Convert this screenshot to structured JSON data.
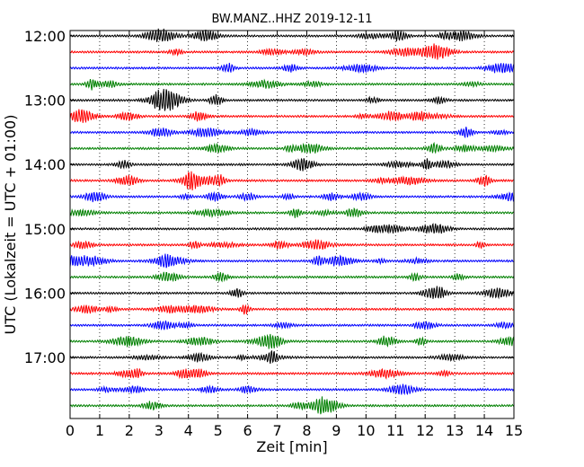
{
  "chart_data": {
    "type": "line",
    "title": "BW.MANZ..HHZ 2019-12-11",
    "xlabel": "Zeit  [min]",
    "ylabel": "UTC (Lokalzeit = UTC + 01:00)",
    "xlim": [
      0,
      15
    ],
    "x_ticks": [
      "0",
      "1",
      "2",
      "3",
      "4",
      "5",
      "6",
      "7",
      "8",
      "9",
      "10",
      "11",
      "12",
      "13",
      "14",
      "15"
    ],
    "y_tick_labels": [
      "12:00",
      "13:00",
      "14:00",
      "15:00",
      "16:00",
      "17:00"
    ],
    "trace_start": "12:00",
    "trace_interval_min": 15,
    "trace_count": 24,
    "trace_colors": [
      "#000000",
      "#ff0000",
      "#0000ff",
      "#008000"
    ],
    "grid": "vertical dotted",
    "legend": "none"
  }
}
